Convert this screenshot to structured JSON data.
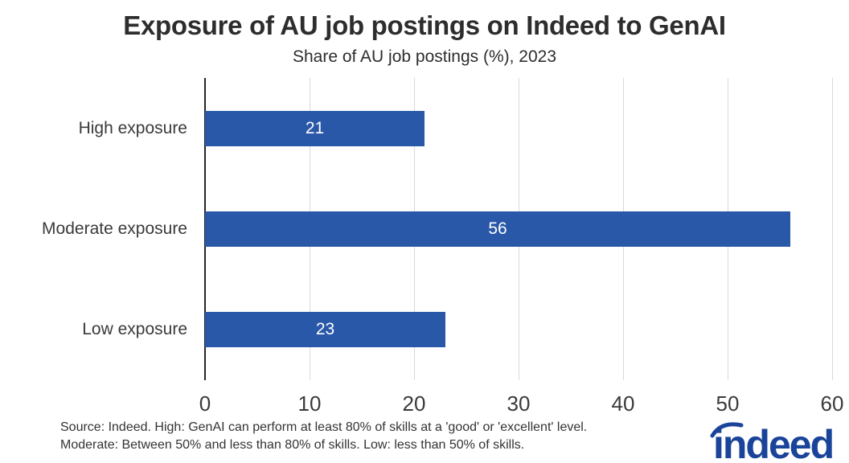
{
  "chart_data": {
    "type": "bar",
    "orientation": "horizontal",
    "title": "Exposure of AU job postings on Indeed to GenAI",
    "subtitle": "Share of AU job postings (%), 2023",
    "categories": [
      "High exposure",
      "Moderate exposure",
      "Low exposure"
    ],
    "values": [
      21,
      56,
      23
    ],
    "xlabel": "",
    "ylabel": "",
    "xlim": [
      0,
      60
    ],
    "xticks": [
      0,
      10,
      20,
      30,
      40,
      50,
      60
    ],
    "grid": true,
    "legend": false,
    "bar_color": "#2a58a8",
    "value_label_color": "#ffffff"
  },
  "footer": {
    "source_line1": "Source: Indeed. High: GenAI can perform at least 80% of skills at a 'good' or 'excellent' level.",
    "source_line2": "Moderate: Between 50% and less than 80% of skills. Low: less than 50% of skills.",
    "logo_text": "indeed"
  },
  "colors": {
    "background": "#ffffff",
    "bar": "#2a58a8",
    "gridline": "#d9d9d9",
    "axis_line": "#262626",
    "title_text": "#2d2d2d",
    "label_text": "#3a3a3a",
    "source_text": "#333333",
    "logo_blue": "#1a449a"
  }
}
